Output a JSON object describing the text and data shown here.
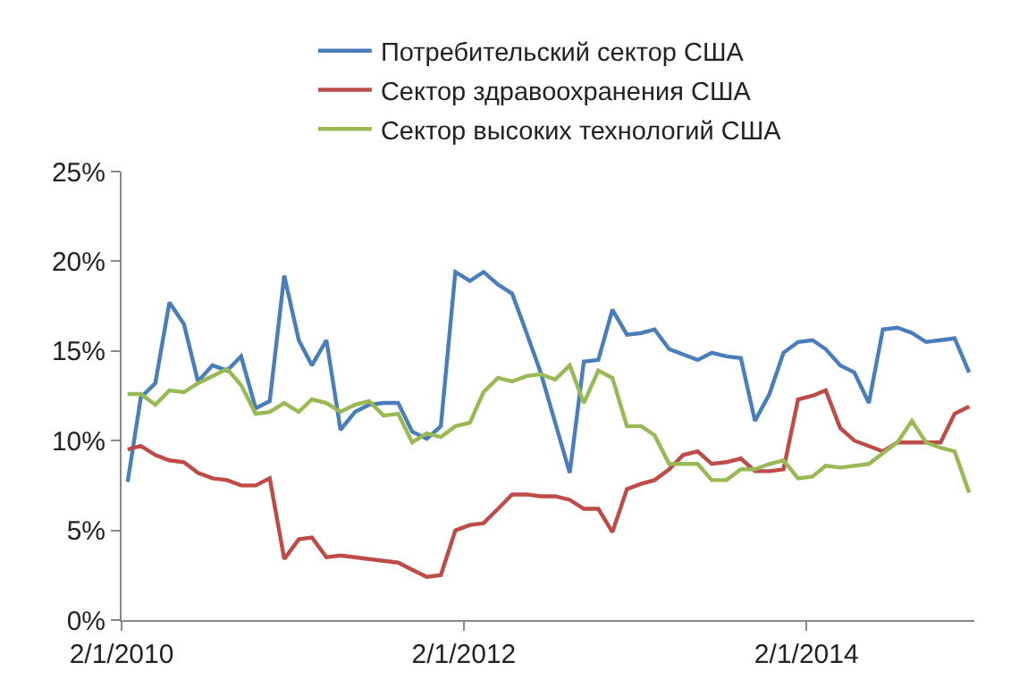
{
  "chart_data": {
    "type": "line",
    "x": [
      "2010-02-14",
      "2010-03-14",
      "2010-04-14",
      "2010-05-14",
      "2010-06-14",
      "2010-07-14",
      "2010-08-14",
      "2010-09-14",
      "2010-10-14",
      "2010-11-14",
      "2010-12-14",
      "2011-01-14",
      "2011-02-14",
      "2011-03-14",
      "2011-04-14",
      "2011-05-14",
      "2011-06-14",
      "2011-07-14",
      "2011-08-14",
      "2011-09-14",
      "2011-10-14",
      "2011-11-14",
      "2011-12-14",
      "2012-01-14",
      "2012-02-14",
      "2012-03-14",
      "2012-04-14",
      "2012-05-14",
      "2012-06-14",
      "2012-07-14",
      "2012-08-14",
      "2012-09-14",
      "2012-10-14",
      "2012-11-14",
      "2012-12-14",
      "2013-01-14",
      "2013-02-14",
      "2013-03-14",
      "2013-04-14",
      "2013-05-14",
      "2013-06-14",
      "2013-07-14",
      "2013-08-14",
      "2013-09-14",
      "2013-10-14",
      "2013-11-14",
      "2013-12-14",
      "2014-01-14",
      "2014-02-14",
      "2014-03-14",
      "2014-04-14",
      "2014-05-14",
      "2014-06-14",
      "2014-07-14",
      "2014-08-14",
      "2014-09-14",
      "2014-10-14",
      "2014-11-14",
      "2014-12-14",
      "2015-01-14"
    ],
    "series": [
      {
        "name": "Потребительский сектор США",
        "color": "#4a7ebb",
        "values": [
          7.7,
          12.4,
          13.2,
          17.7,
          16.5,
          13.3,
          14.2,
          13.9,
          14.7,
          11.8,
          12.2,
          19.2,
          15.6,
          14.2,
          15.6,
          10.6,
          11.6,
          12.0,
          12.1,
          12.1,
          10.5,
          10.1,
          10.8,
          19.4,
          18.9,
          19.4,
          18.7,
          18.2,
          16.0,
          13.8,
          11.0,
          8.2,
          14.4,
          14.5,
          17.3,
          15.9,
          16.0,
          16.2,
          15.1,
          14.8,
          14.5,
          14.9,
          14.7,
          14.6,
          11.1,
          12.6,
          14.9,
          15.5,
          15.6,
          15.1,
          14.2,
          13.8,
          12.1,
          16.2,
          16.3,
          16.0,
          15.5,
          15.6,
          15.7,
          13.8
        ]
      },
      {
        "name": "Сектор здравоохранения США",
        "color": "#be4b48",
        "values": [
          9.5,
          9.7,
          9.2,
          8.9,
          8.8,
          8.2,
          7.9,
          7.8,
          7.5,
          7.5,
          7.9,
          3.4,
          4.5,
          4.6,
          3.5,
          3.6,
          3.5,
          3.4,
          3.3,
          3.2,
          2.8,
          2.4,
          2.5,
          5.0,
          5.3,
          5.4,
          6.2,
          7.0,
          7.0,
          6.9,
          6.9,
          6.7,
          6.2,
          6.2,
          4.9,
          7.3,
          7.6,
          7.8,
          8.4,
          9.2,
          9.4,
          8.7,
          8.8,
          9.0,
          8.3,
          8.3,
          8.4,
          12.3,
          12.5,
          12.8,
          10.7,
          10.0,
          9.7,
          9.4,
          9.9,
          9.9,
          9.9,
          9.9,
          11.5,
          11.9
        ]
      },
      {
        "name": "Сектор высоких технологий США",
        "color": "#98b954",
        "values": [
          12.6,
          12.6,
          12.0,
          12.8,
          12.7,
          13.2,
          13.6,
          14.0,
          13.1,
          11.5,
          11.6,
          12.1,
          11.6,
          12.3,
          12.1,
          11.6,
          12.0,
          12.2,
          11.4,
          11.5,
          9.9,
          10.4,
          10.2,
          10.8,
          11.0,
          12.7,
          13.5,
          13.3,
          13.6,
          13.7,
          13.4,
          14.2,
          12.1,
          13.9,
          13.5,
          10.8,
          10.8,
          10.3,
          8.7,
          8.7,
          8.7,
          7.8,
          7.8,
          8.4,
          8.4,
          8.7,
          8.9,
          7.9,
          8.0,
          8.6,
          8.5,
          8.6,
          8.7,
          9.3,
          9.9,
          11.1,
          9.9,
          9.6,
          9.4,
          7.1
        ]
      }
    ],
    "xlim": [
      "2010-02-01",
      "2015-01-25"
    ],
    "xticks": [
      {
        "value": "2010-02-01",
        "label": "2/1/2010"
      },
      {
        "value": "2012-02-01",
        "label": "2/1/2012"
      },
      {
        "value": "2014-02-01",
        "label": "2/1/2014"
      }
    ],
    "ylim": [
      0,
      25
    ],
    "yticks": [
      {
        "value": 0,
        "label": "0%"
      },
      {
        "value": 5,
        "label": "5%"
      },
      {
        "value": 10,
        "label": "10%"
      },
      {
        "value": 15,
        "label": "15%"
      },
      {
        "value": 20,
        "label": "20%"
      },
      {
        "value": 25,
        "label": "25%"
      }
    ],
    "grid": false,
    "legend": "top",
    "marker": "none",
    "line_style": "solid"
  }
}
